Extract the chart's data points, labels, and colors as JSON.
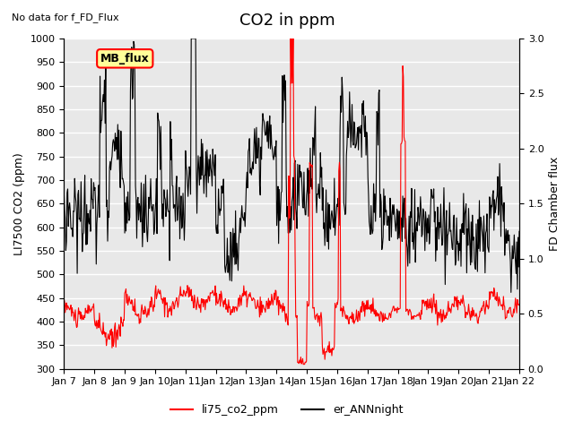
{
  "title": "CO2 in ppm",
  "left_ylabel": "LI7500 CO2 (ppm)",
  "right_ylabel": "FD Chamber flux",
  "no_data_text": "No data for f_FD_Flux",
  "mb_flux_label": "MB_flux",
  "legend_labels": [
    "li75_co2_ppm",
    "er_ANNnight"
  ],
  "left_ylim": [
    300,
    1000
  ],
  "right_ylim": [
    0.0,
    3.0
  ],
  "left_yticks": [
    300,
    350,
    400,
    450,
    500,
    550,
    600,
    650,
    700,
    750,
    800,
    850,
    900,
    950,
    1000
  ],
  "right_yticks": [
    0.0,
    0.5,
    1.0,
    1.5,
    2.0,
    2.5,
    3.0
  ],
  "xticklabels": [
    "Jan 7",
    "Jan 8",
    "Jan 9",
    "Jan 10",
    "Jan 11",
    "Jan 12",
    "Jan 13",
    "Jan 14",
    "Jan 15",
    "Jan 16",
    "Jan 17",
    "Jan 18",
    "Jan 19",
    "Jan 20",
    "Jan 21",
    "Jan 22"
  ],
  "bg_color": "#e8e8e8",
  "grid_color": "#ffffff",
  "red_color": "#ff0000",
  "black_color": "#000000",
  "title_fontsize": 13,
  "label_fontsize": 9,
  "tick_fontsize": 8
}
